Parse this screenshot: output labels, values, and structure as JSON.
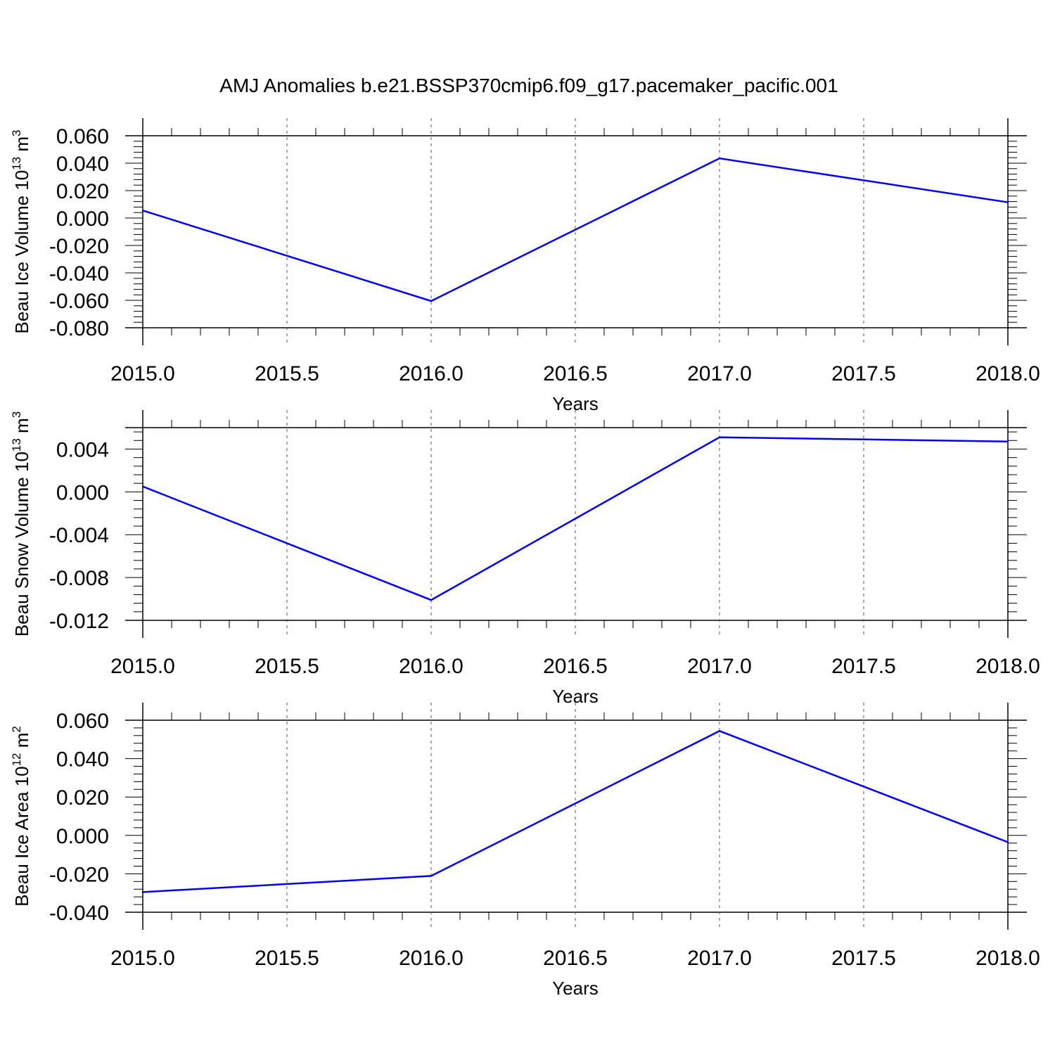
{
  "title": "AMJ Anomalies b.e21.BSSP370cmip6.f09_g17.pacemaker_pacific.001",
  "colors": {
    "series": "#0000ff",
    "axis": "#000000",
    "grid": "#555555"
  },
  "chart_data": [
    {
      "type": "line",
      "xlabel": "Years",
      "ylabel": {
        "base": "Beau Ice Volume 10",
        "exp": "13",
        "unit": " m",
        "unit_exp": "3"
      },
      "xlim": [
        2015.0,
        2018.0
      ],
      "ylim": [
        -0.08,
        0.06
      ],
      "x_ticks": [
        "2015.0",
        "2015.5",
        "2016.0",
        "2016.5",
        "2017.0",
        "2017.5",
        "2018.0"
      ],
      "y_ticks": [
        "0.060",
        "0.040",
        "0.020",
        "0.000",
        "-0.020",
        "-0.040",
        "-0.060",
        "-0.080"
      ],
      "grid": "vertical-dashed",
      "series": [
        {
          "x": [
            2015,
            2016,
            2017,
            2018
          ],
          "values": [
            0.0055,
            -0.0605,
            0.0435,
            0.0115
          ]
        }
      ]
    },
    {
      "type": "line",
      "xlabel": "Years",
      "ylabel": {
        "base": "Beau Snow Volume 10",
        "exp": "13",
        "unit": " m",
        "unit_exp": "3"
      },
      "xlim": [
        2015.0,
        2018.0
      ],
      "ylim": [
        -0.012,
        0.006
      ],
      "x_ticks": [
        "2015.0",
        "2015.5",
        "2016.0",
        "2016.5",
        "2017.0",
        "2017.5",
        "2018.0"
      ],
      "y_ticks": [
        "0.004",
        "0.000",
        "-0.004",
        "-0.008",
        "-0.012"
      ],
      "grid": "vertical-dashed",
      "series": [
        {
          "x": [
            2015,
            2016,
            2017,
            2018
          ],
          "values": [
            0.0005,
            -0.0101,
            0.0051,
            0.0047
          ]
        }
      ]
    },
    {
      "type": "line",
      "xlabel": "Years",
      "ylabel": {
        "base": "Beau Ice Area 10",
        "exp": "12",
        "unit": " m",
        "unit_exp": "2"
      },
      "xlim": [
        2015.0,
        2018.0
      ],
      "ylim": [
        -0.04,
        0.06
      ],
      "x_ticks": [
        "2015.0",
        "2015.5",
        "2016.0",
        "2016.5",
        "2017.0",
        "2017.5",
        "2018.0"
      ],
      "y_ticks": [
        "0.060",
        "0.040",
        "0.020",
        "0.000",
        "-0.020",
        "-0.040"
      ],
      "grid": "vertical-dashed",
      "series": [
        {
          "x": [
            2015,
            2016,
            2017,
            2018
          ],
          "values": [
            -0.0295,
            -0.0211,
            0.0544,
            -0.0035
          ]
        }
      ]
    }
  ]
}
